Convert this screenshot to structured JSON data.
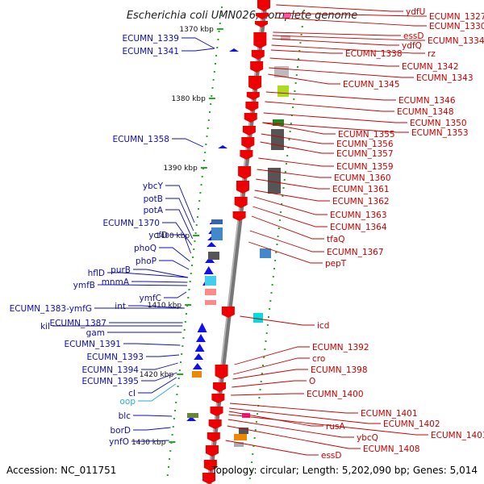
{
  "title": "Escherichia coli UMN026, complete genome",
  "footer": {
    "accession": "Accession: NC_011751",
    "summary": "Topology: circular; Length: 5,202,090 bp; Genes: 5,014"
  },
  "kbp_labels": [
    "1370 kbp",
    "1380 kbp",
    "1390 kbp",
    "1400 kbp",
    "1410 kbp",
    "1420 kbp",
    "1430 kbp"
  ],
  "left_labels": [
    "ECUMN_1339",
    "ECUMN_1341",
    "ECUMN_1358",
    "ybcY",
    "potB",
    "potA",
    "ECUMN_1370",
    "ycfD",
    "phoQ",
    "phoP",
    "purB",
    "hflD",
    "mnmA",
    "ymfB",
    "ymfC",
    "int",
    "ECUMN_1383-ymfG",
    "ECUMN_1387",
    "kil",
    "gam",
    "ECUMN_1391",
    "ECUMN_1393",
    "ECUMN_1394",
    "ECUMN_1395",
    "cI",
    "oop",
    "blc",
    "borD",
    "ynfO"
  ],
  "right_labels": [
    "ydfU",
    "ECUMN_1327",
    "ECUMN_1330",
    "essD",
    "ECUMN_1334",
    "ydfQ",
    "rz",
    "ECUMN_1338",
    "ECUMN_1342",
    "ECUMN_1343",
    "ECUMN_1345",
    "ECUMN_1346",
    "ECUMN_1348",
    "ECUMN_1350",
    "ECUMN_1353",
    "ECUMN_1355",
    "ECUMN_1356",
    "ECUMN_1357",
    "ECUMN_1359",
    "ECUMN_1360",
    "ECUMN_1361",
    "ECUMN_1362",
    "ECUMN_1363",
    "ECUMN_1364",
    "tfaQ",
    "ECUMN_1367",
    "pepT",
    "icd",
    "ECUMN_1392",
    "cro",
    "ECUMN_1398",
    "O",
    "ECUMN_1400",
    "ECUMN_1401",
    "ECUMN_1402",
    "rusA",
    "ECUMN_1403",
    "ybcQ",
    "ECUMN_1408",
    "essD"
  ],
  "colors": {
    "forward_strand": "#ee0000",
    "reverse_strand": "#1010ee",
    "left_label": "#1010b0",
    "right_label": "#cc0000",
    "highlight_label": "#22aadd",
    "axis": "#777777",
    "tick": "#22aa22"
  }
}
